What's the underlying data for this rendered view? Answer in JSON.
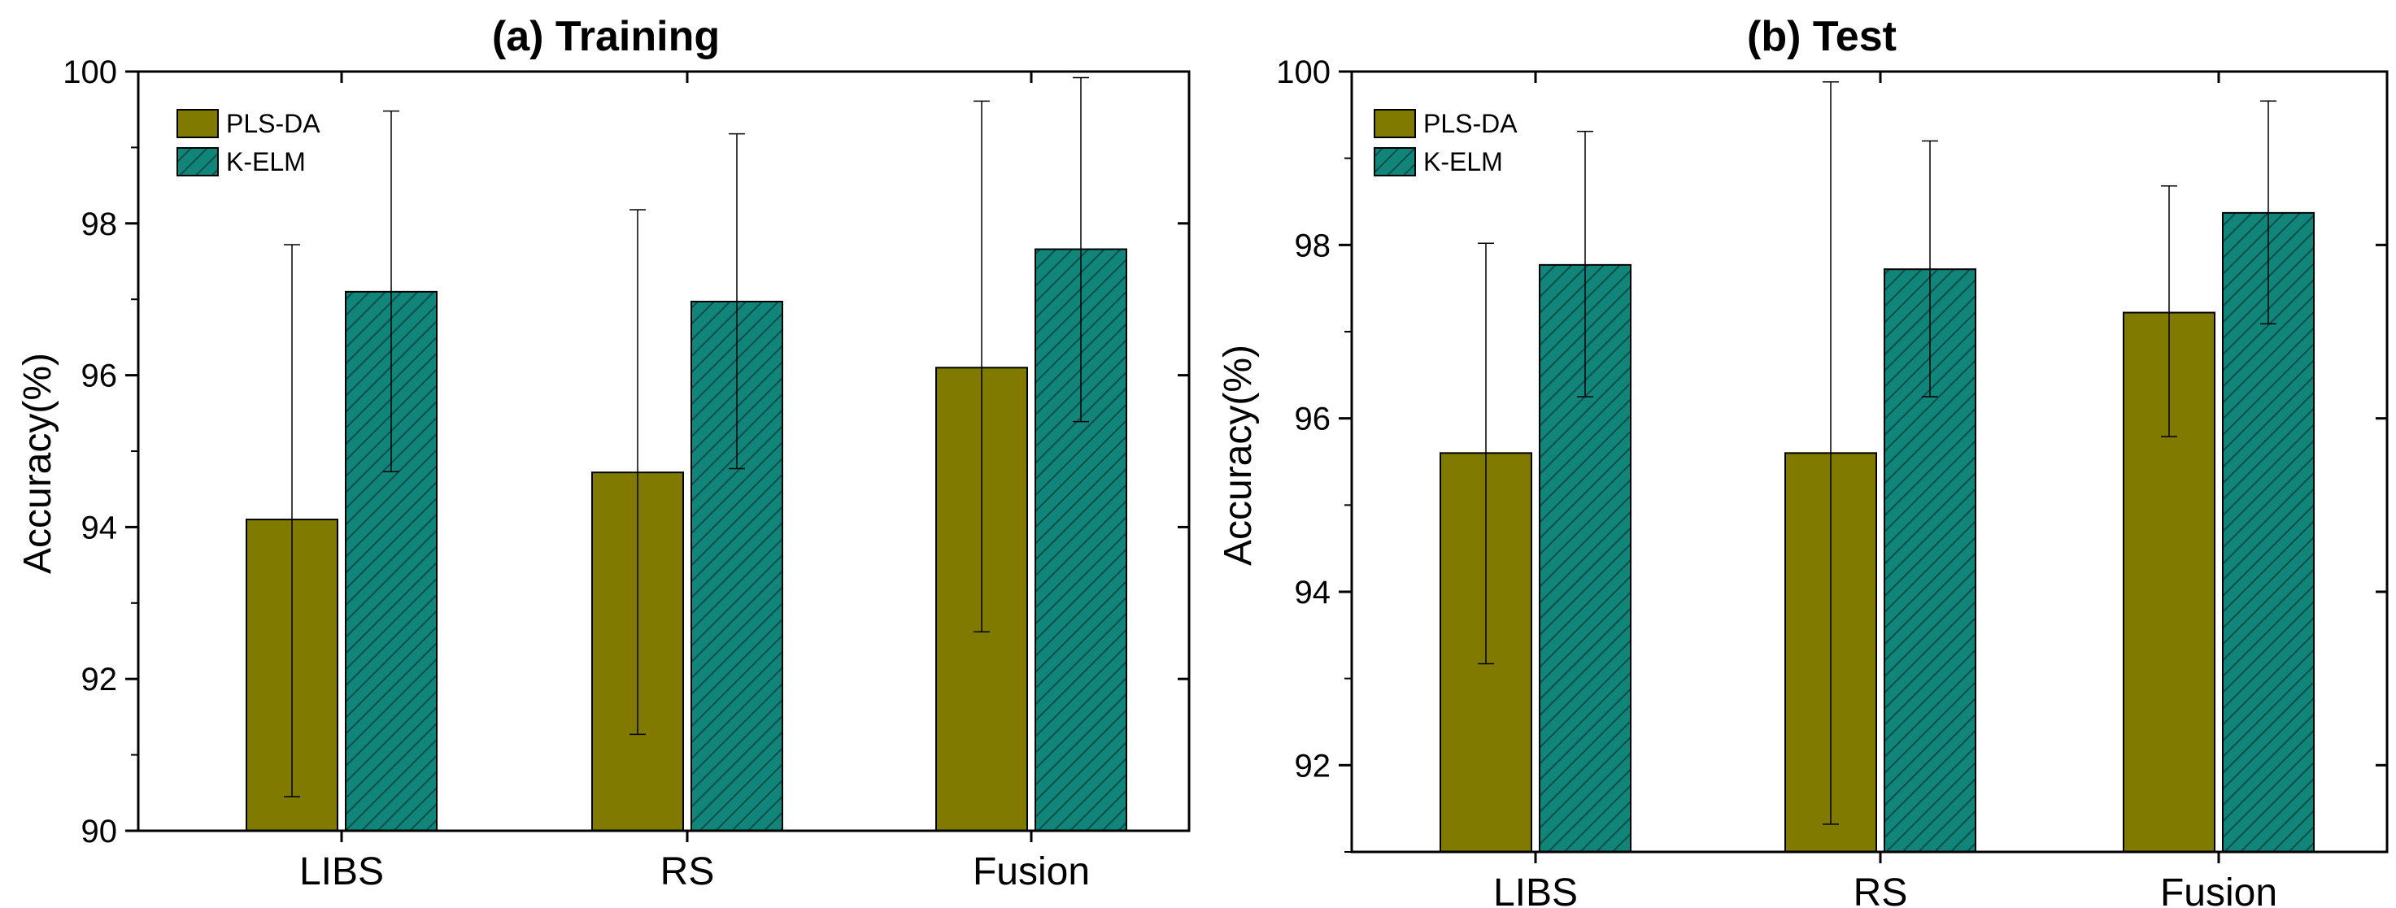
{
  "colors": {
    "PLS-DA": "#807a00",
    "K-ELM": "#11857a",
    "K-ELM-hatch": "#0b4f4a",
    "axis": "#000000"
  },
  "chart_data": [
    {
      "type": "bar",
      "title": "(a) Training",
      "xlabel": "",
      "ylabel": "Accuracy(%)",
      "categories": [
        "LIBS",
        "RS",
        "Fusion"
      ],
      "ylim": [
        90,
        100
      ],
      "yticks": [
        90,
        92,
        94,
        96,
        98,
        100
      ],
      "legend_position": "top-left",
      "series": [
        {
          "name": "PLS-DA",
          "values": [
            94.1,
            94.72,
            96.1
          ],
          "err_low": [
            90.45,
            91.27,
            92.62
          ],
          "err_high": [
            97.72,
            98.18,
            99.61
          ]
        },
        {
          "name": "K-ELM",
          "values": [
            97.1,
            96.97,
            97.66
          ],
          "err_low": [
            94.73,
            94.77,
            95.39
          ],
          "err_high": [
            99.48,
            99.18,
            99.92
          ]
        }
      ]
    },
    {
      "type": "bar",
      "title": "(b) Test",
      "xlabel": "",
      "ylabel": "Accuracy(%)",
      "categories": [
        "LIBS",
        "RS",
        "Fusion"
      ],
      "ylim": [
        91,
        100
      ],
      "yticks": [
        92,
        94,
        96,
        98,
        100
      ],
      "legend_position": "top-left",
      "series": [
        {
          "name": "PLS-DA",
          "values": [
            95.6,
            95.6,
            97.22
          ],
          "err_low": [
            93.17,
            91.32,
            95.79
          ],
          "err_high": [
            98.02,
            99.88,
            98.68
          ]
        },
        {
          "name": "K-ELM",
          "values": [
            97.77,
            97.72,
            98.37
          ],
          "err_low": [
            96.25,
            96.25,
            97.09
          ],
          "err_high": [
            99.31,
            99.2,
            99.66
          ]
        }
      ]
    }
  ]
}
